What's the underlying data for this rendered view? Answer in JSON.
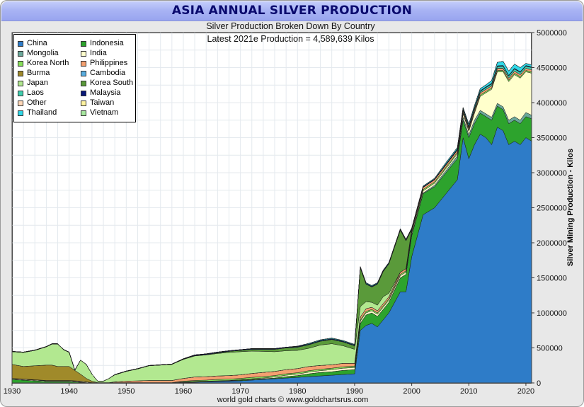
{
  "window": {
    "title": "ASIA ANNUAL SILVER PRODUCTION"
  },
  "chart_data": {
    "type": "area",
    "stacked": true,
    "title": "ASIA ANNUAL SILVER PRODUCTION",
    "subtitle": "Silver Production Broken Down By Country",
    "subtitle2": "Latest 2021e Production = 4,589,639 Kilos",
    "ylabel": "Silver Mining Production - Kilos",
    "xlabel": "",
    "xlim": [
      1930,
      2021
    ],
    "ylim": [
      0,
      5000000
    ],
    "x_ticks": [
      "1930",
      "1940",
      "1950",
      "1960",
      "1970",
      "1980",
      "1990",
      "2000",
      "2010",
      "2020"
    ],
    "y_ticks": [
      "0",
      "500000",
      "1000000",
      "1500000",
      "2000000",
      "2500000",
      "3000000",
      "3500000",
      "4000000",
      "4500000",
      "5000000"
    ],
    "grid": true,
    "legend_position": "top-left",
    "credit": "world gold charts © www.goldchartsrus.com",
    "x": [
      1930,
      1932,
      1934,
      1936,
      1937,
      1938,
      1939,
      1940,
      1941,
      1942,
      1943,
      1944,
      1945,
      1946,
      1947,
      1948,
      1950,
      1952,
      1954,
      1956,
      1958,
      1960,
      1962,
      1964,
      1966,
      1968,
      1970,
      1972,
      1974,
      1976,
      1978,
      1980,
      1982,
      1984,
      1986,
      1988,
      1990,
      1991,
      1992,
      1993,
      1994,
      1995,
      1996,
      1998,
      1999,
      2000,
      2002,
      2004,
      2006,
      2008,
      2009,
      2010,
      2011,
      2012,
      2013,
      2014,
      2015,
      2016,
      2017,
      2018,
      2019,
      2020,
      2021
    ],
    "series": [
      {
        "name": "China",
        "color": "#2e7cc8",
        "values": [
          0,
          0,
          0,
          0,
          0,
          0,
          0,
          0,
          0,
          0,
          0,
          0,
          0,
          0,
          0,
          0,
          0,
          0,
          0,
          0,
          0,
          5000,
          10000,
          15000,
          20000,
          25000,
          30000,
          40000,
          50000,
          60000,
          70000,
          80000,
          90000,
          100000,
          110000,
          120000,
          130000,
          750000,
          820000,
          850000,
          800000,
          900000,
          1000000,
          1300000,
          1300000,
          1800000,
          2400000,
          2500000,
          2700000,
          2900000,
          3500000,
          3200000,
          3400000,
          3550000,
          3500000,
          3400000,
          3650000,
          3600000,
          3400000,
          3450000,
          3400000,
          3500000,
          3450000
        ]
      },
      {
        "name": "Indonesia",
        "color": "#2da32d",
        "values": [
          50000,
          40000,
          30000,
          20000,
          20000,
          20000,
          20000,
          20000,
          15000,
          10000,
          5000,
          0,
          0,
          0,
          0,
          0,
          0,
          0,
          0,
          0,
          0,
          5000,
          5000,
          5000,
          5000,
          5000,
          10000,
          10000,
          10000,
          10000,
          20000,
          25000,
          40000,
          50000,
          50000,
          60000,
          60000,
          100000,
          150000,
          150000,
          150000,
          150000,
          150000,
          200000,
          250000,
          300000,
          300000,
          300000,
          300000,
          300000,
          250000,
          300000,
          300000,
          300000,
          300000,
          350000,
          300000,
          300000,
          300000,
          300000,
          300000,
          300000,
          320000
        ]
      },
      {
        "name": "Mongolia",
        "color": "#6aa89a",
        "values": [
          0,
          0,
          0,
          0,
          0,
          0,
          0,
          0,
          0,
          0,
          0,
          0,
          0,
          0,
          0,
          0,
          0,
          0,
          0,
          0,
          0,
          0,
          0,
          0,
          0,
          0,
          0,
          0,
          0,
          0,
          0,
          0,
          0,
          0,
          0,
          0,
          0,
          0,
          0,
          0,
          0,
          0,
          0,
          0,
          0,
          10000,
          10000,
          20000,
          30000,
          40000,
          40000,
          40000,
          50000,
          40000,
          40000,
          40000,
          40000,
          40000,
          50000,
          50000,
          50000,
          60000,
          50000
        ]
      },
      {
        "name": "India",
        "color": "#ffffcc",
        "values": [
          10000,
          10000,
          10000,
          10000,
          10000,
          10000,
          10000,
          10000,
          10000,
          10000,
          10000,
          5000,
          5000,
          5000,
          5000,
          5000,
          5000,
          5000,
          5000,
          5000,
          5000,
          5000,
          5000,
          5000,
          5000,
          5000,
          5000,
          10000,
          10000,
          15000,
          20000,
          20000,
          25000,
          25000,
          30000,
          30000,
          30000,
          30000,
          30000,
          30000,
          30000,
          30000,
          30000,
          30000,
          30000,
          30000,
          30000,
          30000,
          30000,
          30000,
          50000,
          50000,
          100000,
          200000,
          300000,
          400000,
          450000,
          500000,
          550000,
          600000,
          600000,
          580000,
          600000
        ]
      },
      {
        "name": "Korea North",
        "color": "#88e05a",
        "values": [
          0,
          0,
          0,
          0,
          0,
          0,
          0,
          0,
          0,
          0,
          0,
          0,
          0,
          0,
          0,
          0,
          0,
          0,
          0,
          0,
          0,
          10000,
          15000,
          15000,
          20000,
          20000,
          20000,
          20000,
          20000,
          20000,
          20000,
          20000,
          20000,
          20000,
          20000,
          20000,
          20000,
          20000,
          20000,
          20000,
          20000,
          20000,
          20000,
          20000,
          20000,
          20000,
          20000,
          20000,
          20000,
          20000,
          20000,
          20000,
          20000,
          20000,
          20000,
          20000,
          20000,
          20000,
          20000,
          20000,
          20000,
          20000,
          20000
        ]
      },
      {
        "name": "Philippines",
        "color": "#f4a070",
        "values": [
          5000,
          5000,
          5000,
          5000,
          5000,
          5000,
          5000,
          5000,
          5000,
          5000,
          0,
          0,
          0,
          0,
          0,
          10000,
          20000,
          25000,
          30000,
          30000,
          30000,
          40000,
          50000,
          50000,
          50000,
          50000,
          50000,
          55000,
          60000,
          60000,
          60000,
          60000,
          60000,
          55000,
          50000,
          50000,
          40000,
          40000,
          40000,
          30000,
          30000,
          30000,
          30000,
          30000,
          30000,
          30000,
          30000,
          30000,
          30000,
          30000,
          30000,
          30000,
          30000,
          30000,
          30000,
          30000,
          30000,
          30000,
          30000,
          30000,
          30000,
          30000,
          30000
        ]
      },
      {
        "name": "Burma",
        "color": "#a08a2a",
        "values": [
          200000,
          180000,
          200000,
          220000,
          220000,
          200000,
          200000,
          200000,
          150000,
          100000,
          50000,
          20000,
          0,
          0,
          0,
          0,
          0,
          0,
          0,
          0,
          0,
          0,
          0,
          0,
          0,
          0,
          0,
          0,
          0,
          0,
          0,
          0,
          0,
          0,
          0,
          0,
          0,
          0,
          0,
          0,
          0,
          0,
          0,
          0,
          0,
          0,
          0,
          0,
          0,
          0,
          0,
          0,
          0,
          0,
          0,
          0,
          0,
          0,
          0,
          0,
          0,
          0,
          0
        ]
      },
      {
        "name": "Cambodia",
        "color": "#5aaee0",
        "values": [
          0,
          0,
          0,
          0,
          0,
          0,
          0,
          0,
          0,
          0,
          0,
          0,
          0,
          0,
          0,
          0,
          0,
          0,
          0,
          0,
          0,
          0,
          0,
          0,
          0,
          0,
          0,
          0,
          0,
          0,
          0,
          0,
          0,
          0,
          0,
          0,
          0,
          0,
          0,
          0,
          0,
          0,
          0,
          0,
          0,
          0,
          0,
          0,
          0,
          0,
          0,
          0,
          0,
          0,
          0,
          0,
          0,
          0,
          0,
          0,
          0,
          0,
          0
        ]
      },
      {
        "name": "Japan",
        "color": "#b2e890",
        "values": [
          180000,
          200000,
          220000,
          260000,
          300000,
          320000,
          240000,
          200000,
          0,
          200000,
          200000,
          100000,
          20000,
          20000,
          60000,
          100000,
          140000,
          170000,
          210000,
          220000,
          230000,
          270000,
          300000,
          310000,
          320000,
          330000,
          330000,
          320000,
          300000,
          280000,
          270000,
          260000,
          260000,
          290000,
          300000,
          250000,
          200000,
          150000,
          100000,
          70000,
          80000,
          100000,
          50000,
          0,
          0,
          0,
          0,
          0,
          0,
          0,
          0,
          0,
          0,
          0,
          0,
          0,
          0,
          0,
          0,
          0,
          0,
          0,
          0
        ]
      },
      {
        "name": "Korea South",
        "color": "#5a9a3a",
        "values": [
          0,
          0,
          0,
          0,
          0,
          0,
          0,
          0,
          0,
          0,
          0,
          0,
          0,
          0,
          0,
          0,
          0,
          0,
          0,
          0,
          0,
          5000,
          5000,
          5000,
          10000,
          15000,
          20000,
          25000,
          30000,
          35000,
          40000,
          45000,
          50000,
          55000,
          60000,
          55000,
          50000,
          550000,
          250000,
          220000,
          300000,
          360000,
          420000,
          600000,
          400000,
          0,
          0,
          0,
          0,
          0,
          0,
          0,
          0,
          0,
          0,
          0,
          0,
          0,
          0,
          0,
          0,
          0,
          0
        ]
      },
      {
        "name": "Laos",
        "color": "#40d0b0",
        "values": [
          0,
          0,
          0,
          0,
          0,
          0,
          0,
          0,
          0,
          0,
          0,
          0,
          0,
          0,
          0,
          0,
          0,
          0,
          0,
          0,
          0,
          0,
          0,
          0,
          0,
          0,
          0,
          0,
          0,
          0,
          0,
          0,
          0,
          0,
          0,
          0,
          0,
          0,
          0,
          0,
          0,
          0,
          0,
          0,
          0,
          0,
          0,
          0,
          5000,
          10000,
          10000,
          15000,
          20000,
          20000,
          25000,
          25000,
          25000,
          30000,
          30000,
          30000,
          30000,
          30000,
          30000
        ]
      },
      {
        "name": "Malaysia",
        "color": "#0a1a7a",
        "values": [
          5000,
          5000,
          5000,
          5000,
          5000,
          5000,
          5000,
          5000,
          5000,
          0,
          0,
          0,
          0,
          0,
          0,
          5000,
          5000,
          5000,
          5000,
          5000,
          5000,
          5000,
          10000,
          10000,
          10000,
          10000,
          10000,
          10000,
          10000,
          10000,
          10000,
          10000,
          10000,
          10000,
          10000,
          10000,
          10000,
          10000,
          10000,
          10000,
          10000,
          10000,
          10000,
          10000,
          10000,
          10000,
          10000,
          10000,
          10000,
          10000,
          10000,
          10000,
          10000,
          10000,
          10000,
          10000,
          10000,
          10000,
          10000,
          10000,
          10000,
          10000,
          10000
        ]
      },
      {
        "name": "Other",
        "color": "#ffd8b8",
        "values": [
          0,
          0,
          0,
          0,
          0,
          0,
          0,
          0,
          0,
          0,
          0,
          0,
          0,
          0,
          0,
          0,
          0,
          0,
          0,
          0,
          0,
          0,
          0,
          0,
          0,
          0,
          0,
          0,
          0,
          0,
          0,
          0,
          0,
          0,
          0,
          0,
          0,
          0,
          0,
          0,
          0,
          0,
          0,
          0,
          0,
          0,
          0,
          0,
          0,
          0,
          0,
          0,
          0,
          0,
          0,
          0,
          0,
          0,
          0,
          0,
          0,
          0,
          0
        ]
      },
      {
        "name": "Taiwan",
        "color": "#fff4a0",
        "values": [
          0,
          0,
          0,
          0,
          0,
          0,
          0,
          0,
          0,
          0,
          0,
          0,
          0,
          0,
          0,
          0,
          0,
          0,
          0,
          0,
          0,
          0,
          0,
          0,
          0,
          0,
          0,
          0,
          0,
          0,
          0,
          0,
          0,
          0,
          0,
          0,
          0,
          0,
          0,
          0,
          0,
          0,
          0,
          0,
          0,
          0,
          0,
          0,
          0,
          0,
          0,
          0,
          0,
          0,
          0,
          0,
          0,
          0,
          0,
          0,
          0,
          0,
          0
        ]
      },
      {
        "name": "Thailand",
        "color": "#30d8e8",
        "values": [
          0,
          0,
          0,
          0,
          0,
          0,
          0,
          0,
          0,
          0,
          0,
          0,
          0,
          0,
          0,
          0,
          0,
          0,
          0,
          0,
          0,
          0,
          0,
          0,
          0,
          0,
          0,
          0,
          0,
          0,
          0,
          5000,
          10000,
          10000,
          10000,
          10000,
          10000,
          10000,
          10000,
          10000,
          10000,
          10000,
          10000,
          10000,
          10000,
          10000,
          10000,
          10000,
          20000,
          20000,
          20000,
          30000,
          30000,
          30000,
          30000,
          40000,
          50000,
          60000,
          60000,
          60000,
          60000,
          30000,
          30000
        ]
      },
      {
        "name": "Vietnam",
        "color": "#a8e8a0",
        "values": [
          0,
          0,
          0,
          0,
          0,
          0,
          0,
          0,
          0,
          0,
          0,
          0,
          0,
          0,
          0,
          0,
          0,
          0,
          0,
          0,
          0,
          0,
          0,
          0,
          0,
          0,
          0,
          0,
          0,
          0,
          0,
          0,
          0,
          0,
          0,
          0,
          0,
          0,
          0,
          0,
          0,
          0,
          0,
          0,
          0,
          0,
          0,
          0,
          0,
          0,
          0,
          0,
          0,
          0,
          0,
          0,
          0,
          0,
          0,
          0,
          0,
          0,
          0
        ]
      }
    ]
  }
}
